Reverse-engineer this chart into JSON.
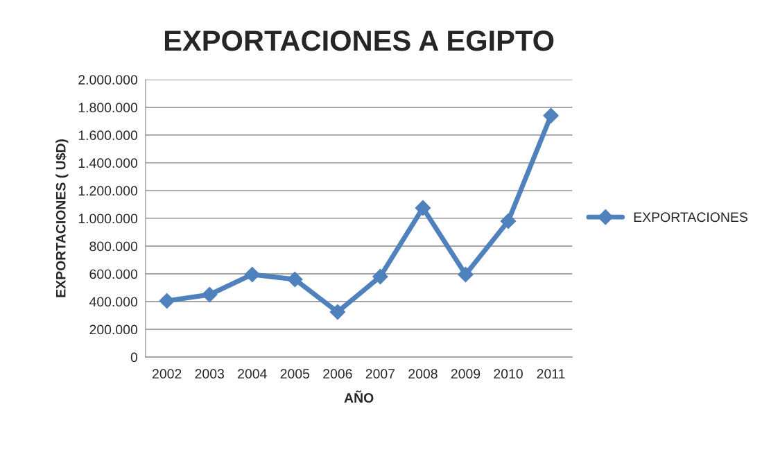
{
  "chart_data": {
    "type": "line",
    "title": "EXPORTACIONES A EGIPTO",
    "xlabel": "AÑO",
    "ylabel": "EXPORTACIONES ( U$D)",
    "categories": [
      "2002",
      "2003",
      "2004",
      "2005",
      "2006",
      "2007",
      "2008",
      "2009",
      "2010",
      "2011"
    ],
    "series": [
      {
        "name": "EXPORTACIONES",
        "color": "#4f81bd",
        "values": [
          405000,
          450000,
          595000,
          560000,
          325000,
          580000,
          1075000,
          595000,
          980000,
          1740000
        ]
      }
    ],
    "ylim": [
      0,
      2000000
    ],
    "yticks": [
      0,
      {
        "value": 200000,
        "label": "200.000"
      },
      {
        "value": 400000,
        "label": "400.000"
      },
      {
        "value": 600000,
        "label": "600.000"
      },
      {
        "value": 800000,
        "label": "800.000"
      },
      {
        "value": 1000000,
        "label": "1.000.000"
      },
      {
        "value": 1200000,
        "label": "1.200.000"
      },
      {
        "value": 1400000,
        "label": "1.400.000"
      },
      {
        "value": 1600000,
        "label": "1.600.000"
      },
      {
        "value": 1800000,
        "label": "1.800.000"
      },
      {
        "value": 2000000,
        "label": "2.000.000"
      }
    ],
    "grid": "y",
    "legend": "right",
    "marker": "diamond",
    "line_style": "solid"
  }
}
